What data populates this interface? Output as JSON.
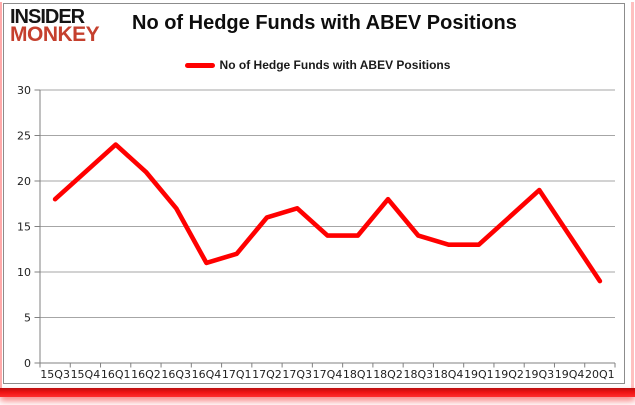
{
  "logo": {
    "line1": "INSIDER",
    "line2": "MONKEY",
    "monkey_color": "#c5402e"
  },
  "header": {
    "title": "No of Hedge Funds with ABEV Positions"
  },
  "legend": {
    "label": "No of Hedge Funds with ABEV Positions",
    "color": "#ff0000"
  },
  "frame": {
    "accent_color": "#ee1212",
    "border_color": "#8c8c8c"
  },
  "chart_data": {
    "type": "line",
    "title": "No of Hedge Funds with ABEV Positions",
    "categories": [
      "15Q3",
      "15Q4",
      "16Q1",
      "16Q2",
      "16Q3",
      "16Q4",
      "17Q1",
      "17Q2",
      "17Q3",
      "17Q4",
      "18Q1",
      "18Q2",
      "18Q3",
      "18Q4",
      "19Q1",
      "19Q2",
      "19Q3",
      "19Q4",
      "20Q1"
    ],
    "series": [
      {
        "name": "No of Hedge Funds with ABEV Positions",
        "color": "#ff0000",
        "values": [
          18,
          21,
          24,
          21,
          17,
          11,
          12,
          16,
          17,
          14,
          14,
          18,
          14,
          13,
          13,
          16,
          19,
          14,
          9
        ]
      }
    ],
    "xlabel": "",
    "ylabel": "",
    "ylim": [
      0,
      30
    ],
    "yticks": [
      0,
      5,
      10,
      15,
      20,
      25,
      30
    ],
    "grid": true,
    "legend_position": "top-center",
    "gridline_color": "#a6a6a6",
    "axis_color": "#808080",
    "tick_label_color": "#1f1f1f"
  }
}
